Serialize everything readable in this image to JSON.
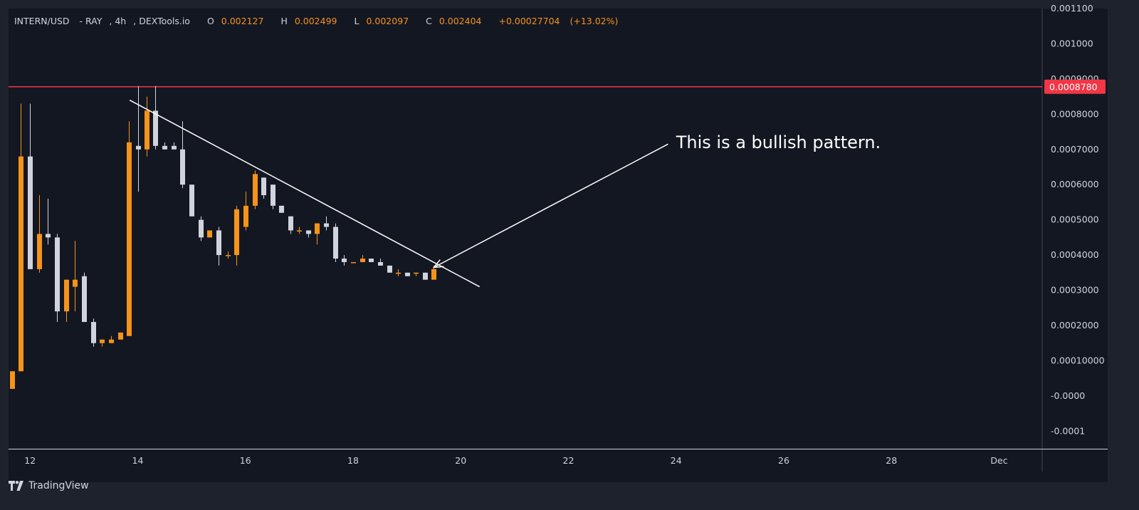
{
  "header": {
    "symbol": "INTERN/USD",
    "exchange": "RAY",
    "interval": "4h",
    "source": "DEXTools.io",
    "open_label": "O",
    "open": "0.002127",
    "high_label": "H",
    "high": "0.002499",
    "low_label": "L",
    "low": "0.002097",
    "close_label": "C",
    "close": "0.002404",
    "change": "+0.00027704",
    "change_pct": "(+13.02%)"
  },
  "brand": {
    "name": "TradingView",
    "icon": "tradingview-logo-icon"
  },
  "colors": {
    "background": "#131722",
    "frame": "#1e222d",
    "up": "#f7931a",
    "down": "#d1d4dc",
    "resistance": "#f23645",
    "annotation": "#ffffff",
    "text": "#d1d4dc"
  },
  "chart_data": {
    "type": "candlestick",
    "y_axis": {
      "range": [
        -0.00015,
        0.0011
      ],
      "ticks": [
        {
          "value": 0.0011,
          "label": "0.001100"
        },
        {
          "value": 0.001,
          "label": "0.001000"
        },
        {
          "value": 0.0009,
          "label": "0.0009000"
        },
        {
          "value": 0.0008,
          "label": "0.0008000"
        },
        {
          "value": 0.0007,
          "label": "0.0007000"
        },
        {
          "value": 0.0006,
          "label": "0.0006000"
        },
        {
          "value": 0.0005,
          "label": "0.0005000"
        },
        {
          "value": 0.0004,
          "label": "0.0004000"
        },
        {
          "value": 0.0003,
          "label": "0.0003000"
        },
        {
          "value": 0.0002,
          "label": "0.0002000"
        },
        {
          "value": 0.0001,
          "label": "0.00010000"
        },
        {
          "value": 0.0,
          "label": "-0.0000"
        },
        {
          "value": -0.0001,
          "label": "-0.0001"
        }
      ]
    },
    "x_axis": {
      "range": [
        11.6,
        30.8
      ],
      "ticks": [
        {
          "value": 12,
          "label": "12"
        },
        {
          "value": 14,
          "label": "14"
        },
        {
          "value": 16,
          "label": "16"
        },
        {
          "value": 18,
          "label": "18"
        },
        {
          "value": 20,
          "label": "20"
        },
        {
          "value": 22,
          "label": "22"
        },
        {
          "value": 24,
          "label": "24"
        },
        {
          "value": 26,
          "label": "26"
        },
        {
          "value": 28,
          "label": "28"
        },
        {
          "value": 30,
          "label": "Dec"
        }
      ]
    },
    "candles": [
      {
        "t": 11.67,
        "o": 2e-05,
        "h": 7e-05,
        "l": 2e-05,
        "c": 7e-05
      },
      {
        "t": 11.83,
        "o": 7e-05,
        "h": 0.00083,
        "l": 7e-05,
        "c": 0.00068
      },
      {
        "t": 12.0,
        "o": 0.00068,
        "h": 0.00083,
        "l": 0.00036,
        "c": 0.00036
      },
      {
        "t": 12.17,
        "o": 0.00036,
        "h": 0.00057,
        "l": 0.00035,
        "c": 0.00046
      },
      {
        "t": 12.33,
        "o": 0.00046,
        "h": 0.00056,
        "l": 0.00043,
        "c": 0.00045
      },
      {
        "t": 12.5,
        "o": 0.00045,
        "h": 0.00046,
        "l": 0.00021,
        "c": 0.00024
      },
      {
        "t": 12.67,
        "o": 0.00024,
        "h": 0.00033,
        "l": 0.00021,
        "c": 0.00033
      },
      {
        "t": 12.83,
        "o": 0.00031,
        "h": 0.00044,
        "l": 0.00024,
        "c": 0.00033
      },
      {
        "t": 13.0,
        "o": 0.00034,
        "h": 0.00035,
        "l": 0.00021,
        "c": 0.00021
      },
      {
        "t": 13.17,
        "o": 0.00021,
        "h": 0.00022,
        "l": 0.00014,
        "c": 0.00015
      },
      {
        "t": 13.33,
        "o": 0.00015,
        "h": 0.00016,
        "l": 0.00014,
        "c": 0.00016
      },
      {
        "t": 13.5,
        "o": 0.00015,
        "h": 0.00017,
        "l": 0.00015,
        "c": 0.00016
      },
      {
        "t": 13.67,
        "o": 0.00016,
        "h": 0.00018,
        "l": 0.00016,
        "c": 0.00018
      },
      {
        "t": 13.83,
        "o": 0.00017,
        "h": 0.00078,
        "l": 0.00017,
        "c": 0.00072
      },
      {
        "t": 14.0,
        "o": 0.00071,
        "h": 0.00088,
        "l": 0.00058,
        "c": 0.0007
      },
      {
        "t": 14.17,
        "o": 0.0007,
        "h": 0.00085,
        "l": 0.00068,
        "c": 0.00081
      },
      {
        "t": 14.33,
        "o": 0.00081,
        "h": 0.00088,
        "l": 0.0007,
        "c": 0.00071
      },
      {
        "t": 14.5,
        "o": 0.00071,
        "h": 0.00072,
        "l": 0.0007,
        "c": 0.0007
      },
      {
        "t": 14.67,
        "o": 0.00071,
        "h": 0.00072,
        "l": 0.0007,
        "c": 0.0007
      },
      {
        "t": 14.83,
        "o": 0.0007,
        "h": 0.00078,
        "l": 0.00059,
        "c": 0.0006
      },
      {
        "t": 15.0,
        "o": 0.0006,
        "h": 0.0006,
        "l": 0.00051,
        "c": 0.00051
      },
      {
        "t": 15.17,
        "o": 0.0005,
        "h": 0.00051,
        "l": 0.00044,
        "c": 0.00045
      },
      {
        "t": 15.33,
        "o": 0.00045,
        "h": 0.00047,
        "l": 0.00045,
        "c": 0.00047
      },
      {
        "t": 15.5,
        "o": 0.00047,
        "h": 0.00048,
        "l": 0.00037,
        "c": 0.0004
      },
      {
        "t": 15.67,
        "o": 0.0004,
        "h": 0.00041,
        "l": 0.00039,
        "c": 0.0004
      },
      {
        "t": 15.83,
        "o": 0.0004,
        "h": 0.00054,
        "l": 0.00037,
        "c": 0.00053
      },
      {
        "t": 16.0,
        "o": 0.00048,
        "h": 0.00058,
        "l": 0.00047,
        "c": 0.00054
      },
      {
        "t": 16.17,
        "o": 0.00054,
        "h": 0.00064,
        "l": 0.00053,
        "c": 0.00063
      },
      {
        "t": 16.33,
        "o": 0.00062,
        "h": 0.00062,
        "l": 0.00056,
        "c": 0.00057
      },
      {
        "t": 16.5,
        "o": 0.0006,
        "h": 0.0006,
        "l": 0.00053,
        "c": 0.00054
      },
      {
        "t": 16.67,
        "o": 0.00054,
        "h": 0.00054,
        "l": 0.00052,
        "c": 0.00052
      },
      {
        "t": 16.83,
        "o": 0.00051,
        "h": 0.00051,
        "l": 0.00046,
        "c": 0.00047
      },
      {
        "t": 17.0,
        "o": 0.00047,
        "h": 0.00048,
        "l": 0.00046,
        "c": 0.00047
      },
      {
        "t": 17.17,
        "o": 0.00047,
        "h": 0.00047,
        "l": 0.00045,
        "c": 0.00046
      },
      {
        "t": 17.33,
        "o": 0.00046,
        "h": 0.00049,
        "l": 0.00043,
        "c": 0.00049
      },
      {
        "t": 17.5,
        "o": 0.00049,
        "h": 0.00051,
        "l": 0.00047,
        "c": 0.00048
      },
      {
        "t": 17.67,
        "o": 0.00048,
        "h": 0.00049,
        "l": 0.00038,
        "c": 0.00039
      },
      {
        "t": 17.83,
        "o": 0.00039,
        "h": 0.0004,
        "l": 0.00037,
        "c": 0.00038
      },
      {
        "t": 18.0,
        "o": 0.00038,
        "h": 0.00038,
        "l": 0.00038,
        "c": 0.00038
      },
      {
        "t": 18.17,
        "o": 0.00038,
        "h": 0.0004,
        "l": 0.00038,
        "c": 0.00039
      },
      {
        "t": 18.33,
        "o": 0.00039,
        "h": 0.00039,
        "l": 0.00038,
        "c": 0.00038
      },
      {
        "t": 18.5,
        "o": 0.00038,
        "h": 0.00039,
        "l": 0.00037,
        "c": 0.00037
      },
      {
        "t": 18.67,
        "o": 0.00037,
        "h": 0.00037,
        "l": 0.00035,
        "c": 0.00035
      },
      {
        "t": 18.83,
        "o": 0.00035,
        "h": 0.00036,
        "l": 0.00034,
        "c": 0.00035
      },
      {
        "t": 19.0,
        "o": 0.00035,
        "h": 0.00035,
        "l": 0.00034,
        "c": 0.00034
      },
      {
        "t": 19.17,
        "o": 0.00035,
        "h": 0.00035,
        "l": 0.00034,
        "c": 0.00035
      },
      {
        "t": 19.33,
        "o": 0.00035,
        "h": 0.00035,
        "l": 0.00033,
        "c": 0.00033
      },
      {
        "t": 19.5,
        "o": 0.00033,
        "h": 0.00037,
        "l": 0.00033,
        "c": 0.00036
      }
    ],
    "resistance": {
      "value": 0.000878,
      "label": "0.0008780",
      "from_t": 11.6
    },
    "trendline": {
      "start": {
        "t": 13.85,
        "v": 0.00084
      },
      "end": {
        "t": 20.35,
        "v": 0.00031
      }
    },
    "annotation": {
      "text": "This is a bullish pattern.",
      "arrow_from": {
        "t": 23.85,
        "v": 0.000715
      },
      "arrow_to": {
        "t": 19.5,
        "v": 0.000365
      },
      "text_at": {
        "t": 24.0,
        "v": 0.00072
      }
    }
  }
}
